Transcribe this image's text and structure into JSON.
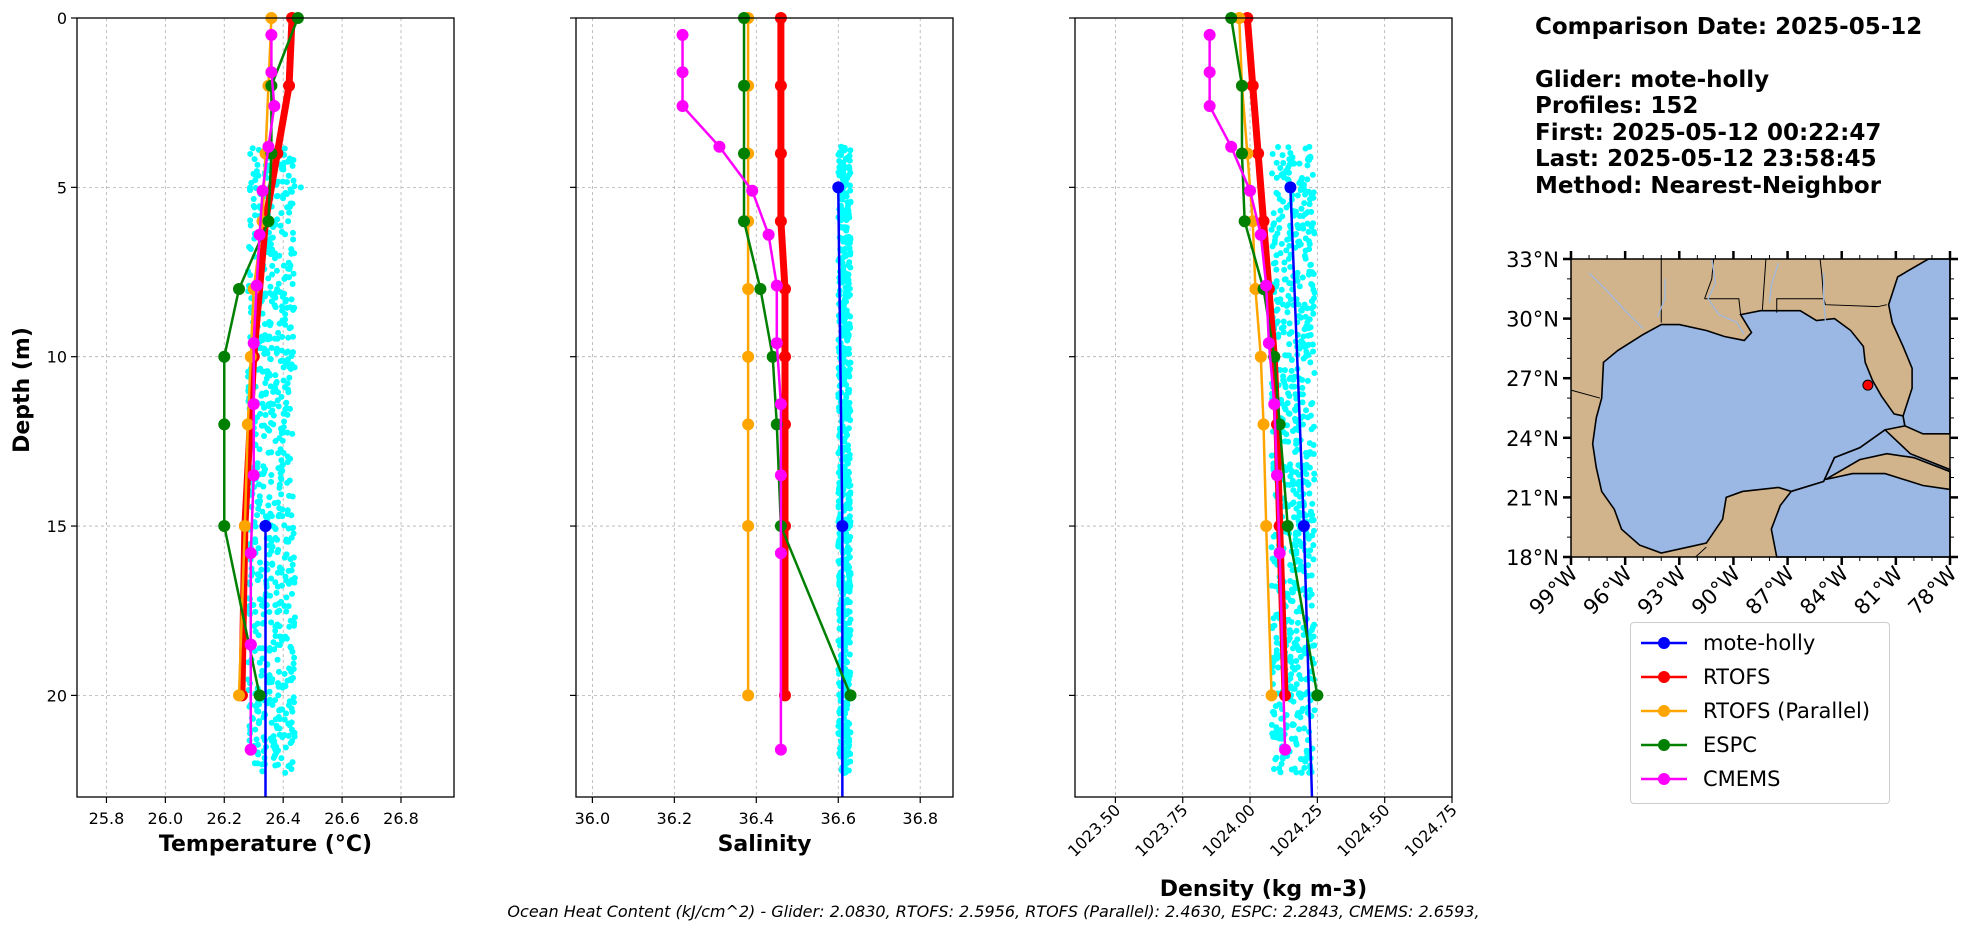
{
  "info": {
    "comparison": "Comparison Date: 2025-05-12",
    "glider": "Glider: mote-holly",
    "profiles": "Profiles: 152",
    "first": "First: 2025-05-12 00:22:47",
    "last": "Last: 2025-05-12 23:58:45",
    "method": "Method: Nearest-Neighbor"
  },
  "footer": "Ocean Heat Content (kJ/cm^2) - Glider: 2.0830,  RTOFS: 2.5956,  RTOFS (Parallel): 2.4630,  ESPC: 2.2843,  CMEMS: 2.6593,",
  "colors": {
    "glider": "#0000ff",
    "glider_scatter": "#00ffff",
    "rtofs": "#ff0000",
    "rtofs_parallel": "#ffa500",
    "espc": "#008000",
    "cmems": "#ff00ff",
    "land": "#d2b48c",
    "ocean": "#9ab8e3",
    "grid": "#b0b0b0"
  },
  "legend": [
    {
      "name": "mote-holly",
      "color": "#0000ff"
    },
    {
      "name": "RTOFS",
      "color": "#ff0000"
    },
    {
      "name": "RTOFS (Parallel)",
      "color": "#ffa500"
    },
    {
      "name": "ESPC",
      "color": "#008000"
    },
    {
      "name": "CMEMS",
      "color": "#ff00ff"
    }
  ],
  "chart_data": [
    {
      "type": "line",
      "xlabel": "Temperature ($^{o}C$)",
      "xlabel_display": "Temperature (°C)",
      "ylabel": "Depth (m)",
      "xlim": [
        25.7,
        26.98
      ],
      "ylim": [
        23,
        0
      ],
      "xticks": [
        "25.8",
        "26.0",
        "26.2",
        "26.4",
        "26.6",
        "26.8"
      ],
      "xtick_values": [
        25.8,
        26.0,
        26.2,
        26.4,
        26.6,
        26.8
      ],
      "yticks": [
        "0",
        "5",
        "10",
        "15",
        "20"
      ],
      "ytick_values": [
        0,
        5,
        10,
        15,
        20
      ],
      "grid": true,
      "glider_scatter": {
        "x_range": [
          26.28,
          26.44
        ],
        "depth_range": [
          3.8,
          22.3
        ]
      },
      "series": [
        {
          "name": "mote-holly",
          "x": [
            26.34,
            26.34,
            26.34
          ],
          "depth": [
            15,
            15,
            23
          ]
        },
        {
          "name": "RTOFS",
          "x": [
            26.43,
            26.42,
            26.38,
            26.34,
            26.3,
            26.27,
            26.26
          ],
          "depth": [
            0,
            2,
            4,
            6,
            10,
            15,
            20
          ]
        },
        {
          "name": "RTOFS (Parallel)",
          "x": [
            26.36,
            26.35,
            26.34,
            26.33,
            26.3,
            26.29,
            26.28,
            26.27,
            26.25
          ],
          "depth": [
            0,
            2,
            4,
            6,
            8,
            10,
            12,
            15,
            20
          ]
        },
        {
          "name": "ESPC",
          "x": [
            26.45,
            26.36,
            26.36,
            26.35,
            26.25,
            26.2,
            26.2,
            26.2,
            26.32
          ],
          "depth": [
            0,
            2,
            4,
            6,
            8,
            10,
            12,
            15,
            20
          ]
        },
        {
          "name": "CMEMS",
          "x": [
            26.36,
            26.36,
            26.37,
            26.35,
            26.33,
            26.32,
            26.31,
            26.3,
            26.3,
            26.3,
            26.29,
            26.29,
            26.29,
            26.29,
            26.29
          ],
          "depth": [
            0.5,
            1.6,
            2.6,
            3.8,
            5.1,
            6.4,
            7.9,
            9.6,
            11.4,
            13.5,
            15.8,
            18.5,
            18.5,
            21.6,
            21.6
          ]
        }
      ]
    },
    {
      "type": "line",
      "xlabel": "Salinity",
      "xlim": [
        35.96,
        36.88
      ],
      "ylim": [
        23,
        0
      ],
      "xticks": [
        "36.0",
        "36.2",
        "36.4",
        "36.6",
        "36.8"
      ],
      "xtick_values": [
        36.0,
        36.2,
        36.4,
        36.6,
        36.8
      ],
      "yticks": [],
      "grid": true,
      "glider_scatter": {
        "x_range": [
          36.6,
          36.63
        ],
        "depth_range": [
          3.8,
          22.3
        ]
      },
      "series": [
        {
          "name": "mote-holly",
          "x": [
            36.6,
            36.61,
            36.61
          ],
          "depth": [
            5,
            15,
            23
          ]
        },
        {
          "name": "RTOFS",
          "x": [
            36.46,
            36.46,
            36.46,
            36.46,
            36.47,
            36.47,
            36.47,
            36.47,
            36.47
          ],
          "depth": [
            0,
            2,
            4,
            6,
            8,
            10,
            12,
            15,
            20
          ]
        },
        {
          "name": "RTOFS (Parallel)",
          "x": [
            36.38,
            36.38,
            36.38,
            36.38,
            36.38,
            36.38,
            36.38,
            36.38,
            36.38
          ],
          "depth": [
            0,
            2,
            4,
            6,
            8,
            10,
            12,
            15,
            20
          ]
        },
        {
          "name": "ESPC",
          "x": [
            36.37,
            36.37,
            36.37,
            36.37,
            36.41,
            36.44,
            36.45,
            36.46,
            36.63
          ],
          "depth": [
            0,
            2,
            4,
            6,
            8,
            10,
            12,
            15,
            20
          ]
        },
        {
          "name": "CMEMS",
          "x": [
            36.22,
            36.22,
            36.22,
            36.31,
            36.39,
            36.43,
            36.45,
            36.45,
            36.46,
            36.46,
            36.46,
            36.46
          ],
          "depth": [
            0.5,
            1.6,
            2.6,
            3.8,
            5.1,
            6.4,
            7.9,
            9.6,
            11.4,
            13.5,
            15.8,
            21.6
          ]
        }
      ]
    },
    {
      "type": "line",
      "xlabel": "Density (kg m-3)",
      "xlim": [
        1023.35,
        1024.75
      ],
      "ylim": [
        23,
        0
      ],
      "xticks": [
        "1023.50",
        "1023.75",
        "1024.00",
        "1024.25",
        "1024.50",
        "1024.75"
      ],
      "xtick_values": [
        1023.5,
        1023.75,
        1024.0,
        1024.25,
        1024.5,
        1024.75
      ],
      "yticks": [],
      "grid": true,
      "glider_scatter": {
        "x_range": [
          1024.08,
          1024.24
        ],
        "depth_range": [
          3.8,
          22.3
        ]
      },
      "series": [
        {
          "name": "mote-holly",
          "x": [
            1024.15,
            1024.2,
            1024.23
          ],
          "depth": [
            5,
            15,
            23
          ]
        },
        {
          "name": "RTOFS",
          "x": [
            1023.99,
            1024.01,
            1024.03,
            1024.05,
            1024.07,
            1024.09,
            1024.1,
            1024.11,
            1024.13
          ],
          "depth": [
            0,
            2,
            4,
            6,
            8,
            10,
            12,
            15,
            20
          ]
        },
        {
          "name": "RTOFS (Parallel)",
          "x": [
            1023.96,
            1023.97,
            1023.99,
            1024.01,
            1024.02,
            1024.04,
            1024.05,
            1024.06,
            1024.08
          ],
          "depth": [
            0,
            2,
            4,
            6,
            8,
            10,
            12,
            15,
            20
          ]
        },
        {
          "name": "ESPC",
          "x": [
            1023.93,
            1023.97,
            1023.97,
            1023.98,
            1024.05,
            1024.09,
            1024.11,
            1024.14,
            1024.25
          ],
          "depth": [
            0,
            2,
            4,
            6,
            8,
            10,
            12,
            15,
            20
          ]
        },
        {
          "name": "CMEMS",
          "x": [
            1023.85,
            1023.85,
            1023.85,
            1023.93,
            1024.0,
            1024.04,
            1024.06,
            1024.07,
            1024.09,
            1024.1,
            1024.11,
            1024.13
          ],
          "depth": [
            0.5,
            1.6,
            2.6,
            3.8,
            5.1,
            6.4,
            7.9,
            9.6,
            11.4,
            13.5,
            15.8,
            21.6
          ]
        }
      ]
    }
  ],
  "map": {
    "lat_ticks": [
      "33°N",
      "30°N",
      "27°N",
      "24°N",
      "21°N",
      "18°N"
    ],
    "lat_values": [
      33,
      30,
      27,
      24,
      21,
      18
    ],
    "lon_ticks": [
      "99°W",
      "96°W",
      "93°W",
      "90°W",
      "87°W",
      "84°W",
      "81°W",
      "78°W"
    ],
    "lon_values": [
      -99,
      -96,
      -93,
      -90,
      -87,
      -84,
      -81,
      -78
    ],
    "extent": [
      -99,
      -78,
      18,
      33
    ],
    "glider_position": {
      "lon": -82.55,
      "lat": 26.65
    }
  }
}
